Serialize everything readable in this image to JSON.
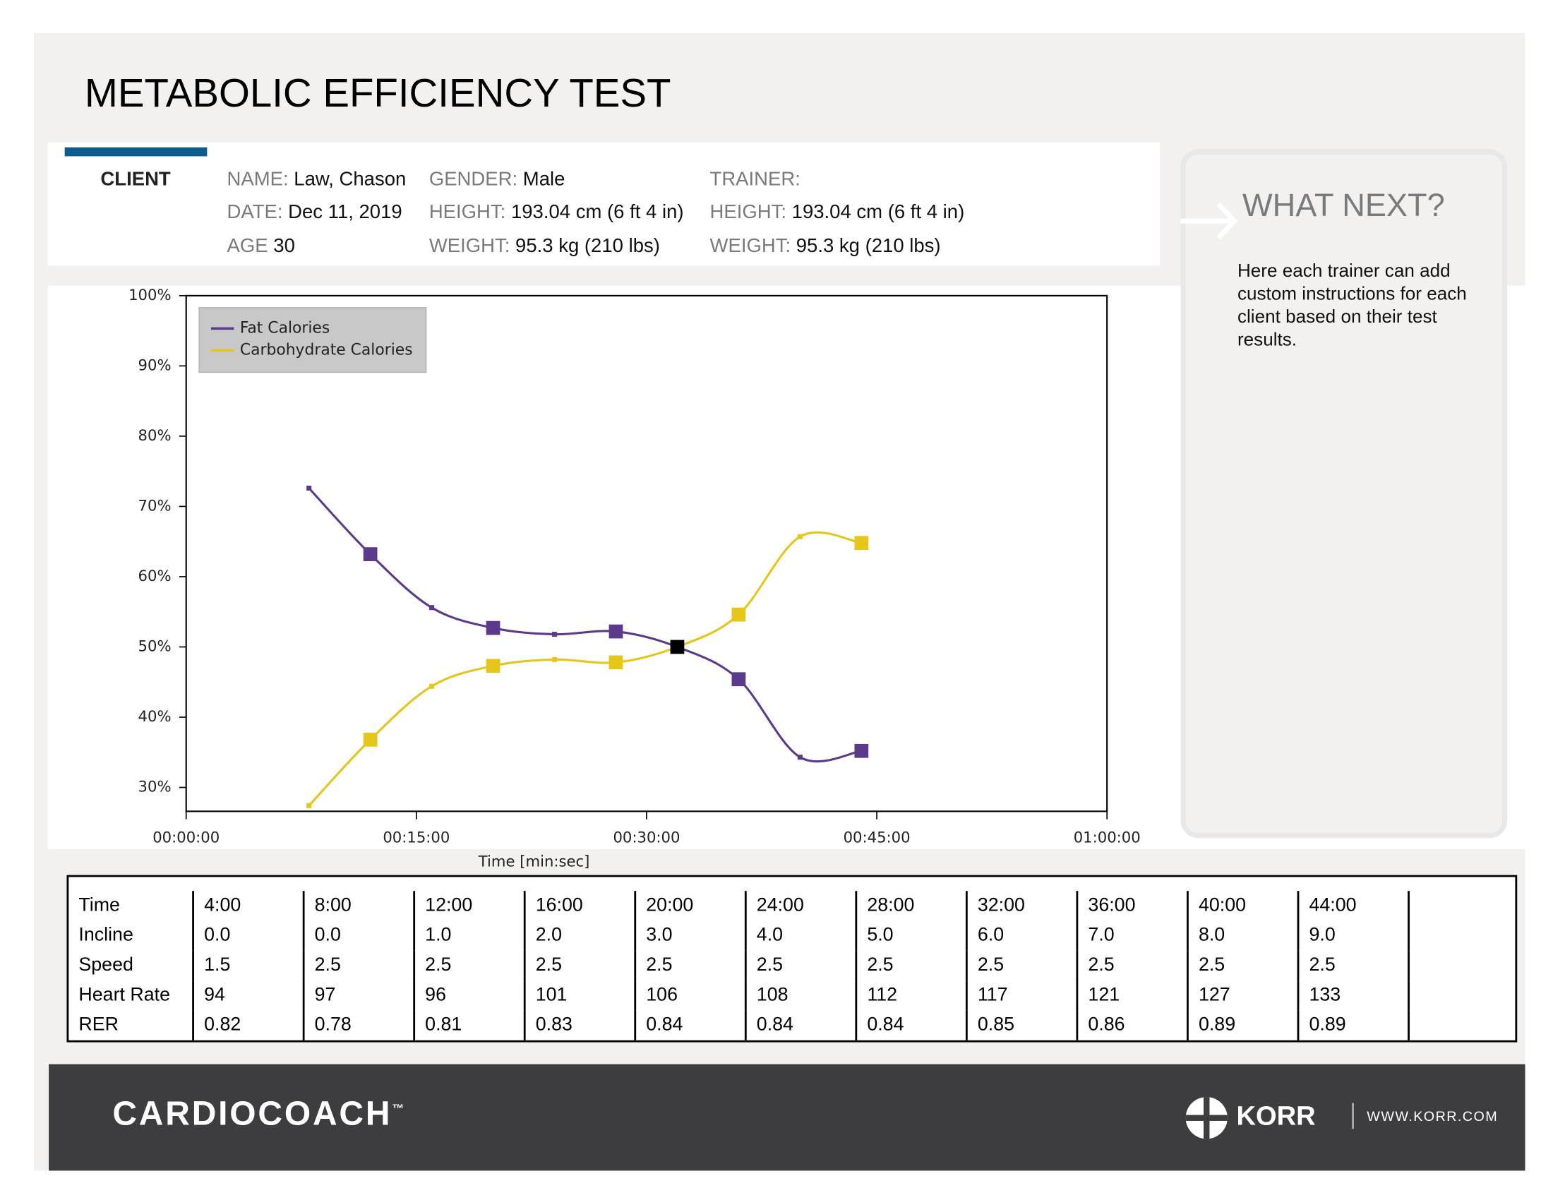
{
  "header": {
    "title": "METABOLIC EFFICIENCY TEST"
  },
  "client": {
    "label": "CLIENT",
    "columns": [
      [
        {
          "label": "NAME:",
          "value": "Law, Chason"
        },
        {
          "label": "DATE:",
          "value": "Dec 11, 2019"
        },
        {
          "label": "AGE",
          "value": "30"
        }
      ],
      [
        {
          "label": "GENDER:",
          "value": "Male"
        },
        {
          "label": "HEIGHT:",
          "value": "193.04 cm (6 ft 4 in)"
        },
        {
          "label": "WEIGHT:",
          "value": "95.3 kg (210 lbs)"
        }
      ],
      [
        {
          "label": "TRAINER:"
        },
        {
          "label": "HEIGHT:",
          "value": "193.04 cm (6 ft 4 in)"
        },
        {
          "label": "WEIGHT:",
          "value": "95.3 kg (210 lbs)"
        }
      ]
    ]
  },
  "what_next": {
    "title": "WHAT NEXT?",
    "text": "Here each trainer can add custom instructions for each client based on their test results."
  },
  "chart_data": {
    "type": "line",
    "x_label": "Time [min:sec]",
    "x": [
      8,
      12,
      16,
      20,
      24,
      28,
      32,
      36,
      40,
      44
    ],
    "series": [
      {
        "name": "Fat Calories",
        "color": "#5b3a8c",
        "values": [
          72.6,
          63.2,
          55.6,
          52.7,
          51.8,
          52.2,
          50.0,
          45.4,
          34.3,
          35.2
        ]
      },
      {
        "name": "Carbohydrate Calories",
        "color": "#e6c619",
        "values": [
          27.4,
          36.8,
          44.4,
          47.3,
          48.2,
          47.8,
          50.0,
          54.6,
          65.7,
          64.8
        ]
      }
    ],
    "xlim": [
      0,
      60
    ],
    "xticks": [
      {
        "value": 0,
        "label": "00:00:00"
      },
      {
        "value": 15,
        "label": "00:15:00"
      },
      {
        "value": 30,
        "label": "00:30:00"
      },
      {
        "value": 45,
        "label": "00:45:00"
      },
      {
        "value": 60,
        "label": "01:00:00"
      }
    ],
    "ylim": [
      26.6,
      100
    ],
    "yticks": [
      {
        "value": 30,
        "label": "30%"
      },
      {
        "value": 40,
        "label": "40%"
      },
      {
        "value": 50,
        "label": "50%"
      },
      {
        "value": 60,
        "label": "60%"
      },
      {
        "value": 70,
        "label": "70%"
      },
      {
        "value": 80,
        "label": "80%"
      },
      {
        "value": 90,
        "label": "90%"
      },
      {
        "value": 100,
        "label": "100%"
      }
    ],
    "legend": "upper left",
    "smooth": true
  },
  "table": {
    "rows": [
      [
        "Time",
        "4:00",
        "8:00",
        "12:00",
        "16:00",
        "20:00",
        "24:00",
        "28:00",
        "32:00",
        "36:00",
        "40:00",
        "44:00"
      ],
      [
        "Incline",
        "0.0",
        "0.0",
        "1.0",
        "2.0",
        "3.0",
        "4.0",
        "5.0",
        "6.0",
        "7.0",
        "8.0",
        "9.0"
      ],
      [
        "Speed",
        "1.5",
        "2.5",
        "2.5",
        "2.5",
        "2.5",
        "2.5",
        "2.5",
        "2.5",
        "2.5",
        "2.5",
        "2.5"
      ],
      [
        "Heart Rate",
        "94",
        "97",
        "96",
        "101",
        "106",
        "108",
        "112",
        "117",
        "121",
        "127",
        "133"
      ],
      [
        "RER",
        "0.82",
        "0.78",
        "0.81",
        "0.83",
        "0.84",
        "0.84",
        "0.84",
        "0.85",
        "0.86",
        "0.89",
        "0.89"
      ]
    ]
  },
  "footer": {
    "brand": "CARDIOCOACH",
    "trademark": "™",
    "company": "KORR",
    "website": "WWW.KORR.COM"
  }
}
